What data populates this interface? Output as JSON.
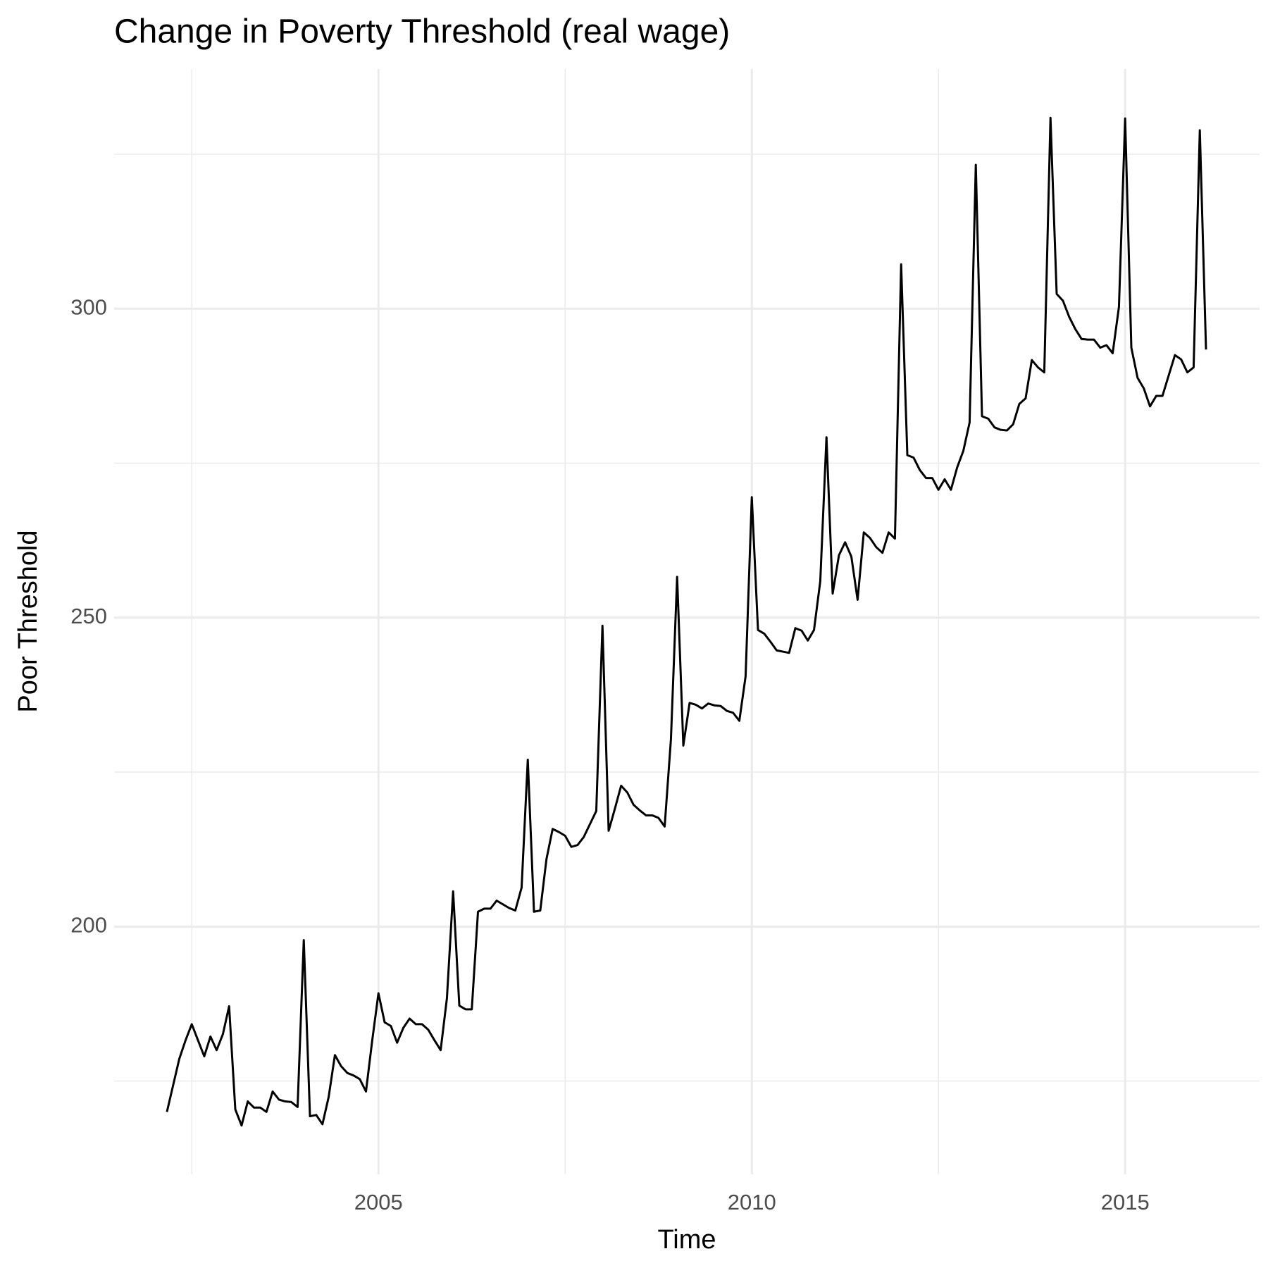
{
  "chart_data": {
    "type": "line",
    "title": "Change in Poverty Threshold (real wage)",
    "x_label": "Time",
    "y_label": "Poor Threshold",
    "x": [
      2002.167,
      2002.25,
      2002.333,
      2002.417,
      2002.5,
      2002.583,
      2002.667,
      2002.75,
      2002.833,
      2002.917,
      2003,
      2003.083,
      2003.167,
      2003.25,
      2003.333,
      2003.417,
      2003.5,
      2003.583,
      2003.667,
      2003.75,
      2003.833,
      2003.917,
      2004,
      2004.083,
      2004.167,
      2004.25,
      2004.333,
      2004.417,
      2004.5,
      2004.583,
      2004.667,
      2004.75,
      2004.833,
      2004.917,
      2005,
      2005.083,
      2005.167,
      2005.25,
      2005.333,
      2005.417,
      2005.5,
      2005.583,
      2005.667,
      2005.75,
      2005.833,
      2005.917,
      2006,
      2006.083,
      2006.167,
      2006.25,
      2006.333,
      2006.417,
      2006.5,
      2006.583,
      2006.667,
      2006.75,
      2006.833,
      2006.917,
      2007,
      2007.083,
      2007.167,
      2007.25,
      2007.333,
      2007.417,
      2007.5,
      2007.583,
      2007.667,
      2007.75,
      2007.833,
      2007.917,
      2008,
      2008.083,
      2008.167,
      2008.25,
      2008.333,
      2008.417,
      2008.5,
      2008.583,
      2008.667,
      2008.75,
      2008.833,
      2008.917,
      2009,
      2009.083,
      2009.167,
      2009.25,
      2009.333,
      2009.417,
      2009.5,
      2009.583,
      2009.667,
      2009.75,
      2009.833,
      2009.917,
      2010,
      2010.083,
      2010.167,
      2010.25,
      2010.333,
      2010.417,
      2010.5,
      2010.583,
      2010.667,
      2010.75,
      2010.833,
      2010.917,
      2011,
      2011.083,
      2011.167,
      2011.25,
      2011.333,
      2011.417,
      2011.5,
      2011.583,
      2011.667,
      2011.75,
      2011.833,
      2011.917,
      2012,
      2012.083,
      2012.167,
      2012.25,
      2012.333,
      2012.417,
      2012.5,
      2012.583,
      2012.667,
      2012.75,
      2012.833,
      2012.917,
      2013,
      2013.083,
      2013.167,
      2013.25,
      2013.333,
      2013.417,
      2013.5,
      2013.583,
      2013.667,
      2013.75,
      2013.833,
      2013.917,
      2014,
      2014.083,
      2014.167,
      2014.25,
      2014.333,
      2014.417,
      2014.5,
      2014.583,
      2014.667,
      2014.75,
      2014.833,
      2014.917,
      2015,
      2015.083,
      2015.167,
      2015.25,
      2015.333,
      2015.417,
      2015.5,
      2015.583,
      2015.667,
      2015.75,
      2015.833,
      2015.917,
      2016,
      2016.083
    ],
    "values": [
      170.0,
      174.3,
      178.6,
      181.6,
      184.2,
      181.6,
      179.0,
      182.2,
      180.0,
      182.6,
      187.1,
      170.4,
      167.8,
      171.7,
      170.7,
      170.7,
      170.0,
      173.3,
      172.0,
      171.7,
      171.6,
      170.8,
      197.8,
      169.3,
      169.5,
      168.0,
      172.4,
      179.2,
      177.4,
      176.3,
      175.9,
      175.3,
      173.3,
      181.6,
      189.2,
      184.5,
      183.9,
      181.2,
      183.6,
      185.1,
      184.2,
      184.2,
      183.3,
      181.6,
      180.0,
      188.4,
      205.7,
      187.2,
      186.6,
      186.6,
      202.4,
      202.9,
      202.9,
      204.2,
      203.6,
      203.0,
      202.6,
      206.3,
      227.0,
      202.4,
      202.6,
      210.9,
      215.8,
      215.3,
      214.7,
      212.9,
      213.2,
      214.5,
      216.6,
      218.7,
      248.7,
      215.5,
      219.1,
      222.8,
      221.7,
      219.7,
      218.8,
      218.0,
      218.0,
      217.6,
      216.2,
      230.3,
      256.6,
      229.3,
      236.2,
      235.9,
      235.3,
      236.1,
      235.8,
      235.7,
      234.9,
      234.6,
      233.3,
      240.5,
      269.5,
      248.0,
      247.4,
      246.1,
      244.7,
      244.5,
      244.3,
      248.3,
      247.9,
      246.3,
      248.0,
      255.9,
      279.2,
      253.9,
      260.1,
      262.2,
      259.9,
      252.9,
      263.8,
      262.9,
      261.4,
      260.5,
      263.8,
      262.8,
      307.2,
      276.3,
      275.9,
      273.9,
      272.6,
      272.6,
      270.7,
      272.4,
      270.7,
      274.3,
      277.0,
      281.6,
      323.3,
      282.6,
      282.2,
      280.8,
      280.4,
      280.3,
      281.3,
      284.6,
      285.5,
      291.7,
      290.5,
      289.7,
      330.9,
      302.4,
      301.3,
      298.7,
      296.7,
      295.1,
      295.0,
      295.0,
      293.7,
      294.1,
      292.8,
      300.3,
      330.8,
      293.7,
      288.8,
      287.1,
      284.2,
      285.9,
      285.9,
      289.2,
      292.5,
      291.8,
      289.7,
      290.5,
      328.9,
      293.4
    ],
    "color": "#000000",
    "xlim": [
      2001.46,
      2016.8
    ],
    "ylim": [
      159.9,
      338.8
    ],
    "xticks": [
      2005,
      2010,
      2015
    ],
    "yticks": [
      200,
      250,
      300
    ],
    "x_minor_grid": [
      2002.5,
      2007.5,
      2012.5
    ],
    "y_minor_grid": [
      175,
      225,
      275,
      325
    ],
    "grid": true
  }
}
